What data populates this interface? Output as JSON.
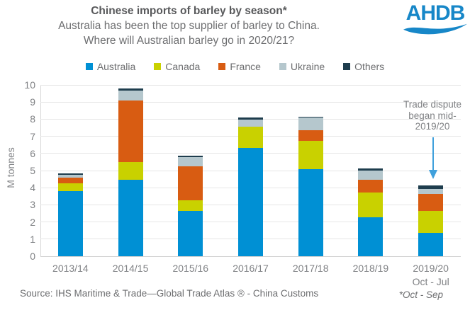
{
  "header": {
    "title": "Chinese imports of barley by season*",
    "subtitle_lines": [
      "Australia has been the top supplier of barley to China.",
      "Where will Australian barley go in 2020/21?"
    ],
    "logo": {
      "text": "AHDB",
      "color": "#1787C8"
    }
  },
  "chart_data": {
    "type": "bar",
    "stacked": true,
    "title": "Chinese imports of barley by season*",
    "ylabel": "M tonnes",
    "xlabel": "",
    "ylim": [
      0,
      10
    ],
    "yticks": [
      0,
      1,
      2,
      3,
      4,
      5,
      6,
      7,
      8,
      9,
      10
    ],
    "grid": true,
    "legend_position": "top",
    "categories": [
      "2013/14",
      "2014/15",
      "2015/16",
      "2016/17",
      "2017/18",
      "2018/19",
      "2019/20"
    ],
    "last_category_note": "Oct - Jul",
    "series": [
      {
        "name": "Australia",
        "color": "#0090D4",
        "values": [
          3.8,
          4.45,
          2.63,
          6.32,
          5.08,
          2.28,
          1.37
        ]
      },
      {
        "name": "Canada",
        "color": "#C9D100",
        "values": [
          0.47,
          1.05,
          0.65,
          1.25,
          1.66,
          1.45,
          1.27
        ]
      },
      {
        "name": "France",
        "color": "#D85C12",
        "values": [
          0.33,
          3.6,
          1.98,
          0.0,
          0.62,
          0.72,
          1.01
        ]
      },
      {
        "name": "Ukraine",
        "color": "#B5C7CD",
        "values": [
          0.14,
          0.55,
          0.54,
          0.41,
          0.73,
          0.56,
          0.28
        ]
      },
      {
        "name": "Others",
        "color": "#1E3D4D",
        "values": [
          0.08,
          0.16,
          0.08,
          0.11,
          0.07,
          0.1,
          0.2
        ]
      }
    ],
    "annotation": {
      "lines": [
        "Trade dispute",
        "began mid-",
        "2019/20"
      ],
      "arrow_color": "#3FA0DC"
    }
  },
  "footer": {
    "source": "Source: IHS Maritime & Trade—Global Trade Atlas ® - China Customs",
    "footnote": "*Oct - Sep"
  }
}
